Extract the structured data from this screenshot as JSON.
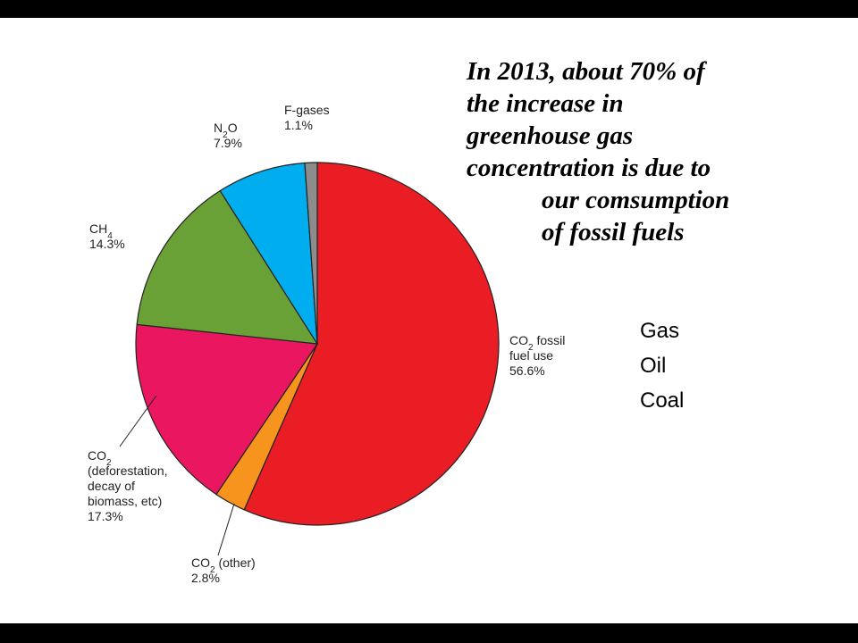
{
  "headline": [
    "In 2013, about 70% of",
    "the increase in",
    "greenhouse gas",
    "concentration is due to",
    "our comsumption",
    "of fossil fuels"
  ],
  "fuel_list": [
    "Gas",
    "Oil",
    "Coal"
  ],
  "chart_data": {
    "type": "pie",
    "title": "",
    "slices": [
      {
        "label": "CO2 fossil fuel use",
        "label_lines": [
          "CO|2| fossil",
          "fuel use"
        ],
        "value": 56.6,
        "value_label": "56.6%",
        "color": "#ea1d24"
      },
      {
        "label": "CO2 (other)",
        "label_lines": [
          "CO|2| (other)"
        ],
        "value": 2.8,
        "value_label": "2.8%",
        "color": "#f7941d"
      },
      {
        "label": "CO2 (deforestation, decay of biomass, etc)",
        "label_lines": [
          "CO|2|",
          "(deforestation,",
          "decay of",
          "biomass, etc)"
        ],
        "value": 17.3,
        "value_label": "17.3%",
        "color": "#ea1660"
      },
      {
        "label": "CH4",
        "label_lines": [
          "CH|4|"
        ],
        "value": 14.3,
        "value_label": "14.3%",
        "color": "#6aa136"
      },
      {
        "label": "N2O",
        "label_lines": [
          "N|2|O"
        ],
        "value": 7.9,
        "value_label": "7.9%",
        "color": "#00aeef"
      },
      {
        "label": "F-gases",
        "label_lines": [
          "F-gases"
        ],
        "value": 1.1,
        "value_label": "1.1%",
        "color": "#8c8c8c"
      }
    ]
  }
}
